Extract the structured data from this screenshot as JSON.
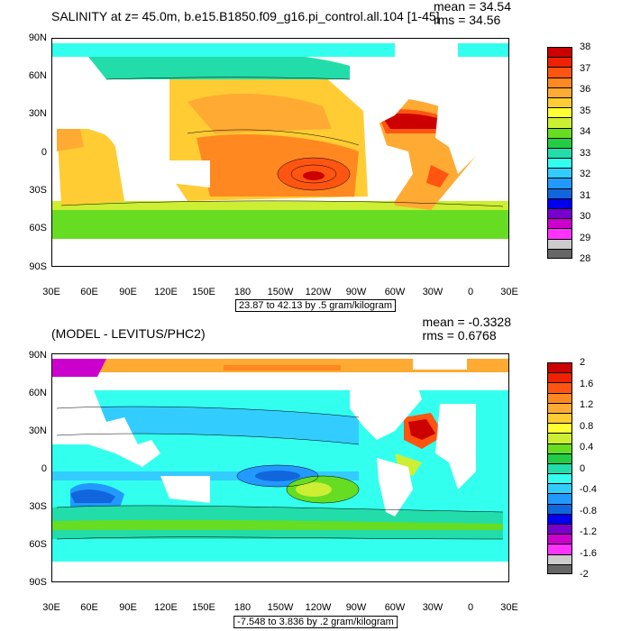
{
  "panels": [
    {
      "title": "SALINITY at z=  45.0m, b.e15.B1850.f09_g16.pi_control.all.104 [1-45]",
      "stats": {
        "mean": "mean = 34.54",
        "rms": "rms = 34.56"
      },
      "range_text": "23.87 to 42.13 by .5 gram/kilogram",
      "lat_ticks": [
        "90N",
        "60N",
        "30N",
        "0",
        "30S",
        "60S",
        "90S"
      ],
      "lon_ticks": [
        "30E",
        "60E",
        "90E",
        "120E",
        "150E",
        "180",
        "150W",
        "120W",
        "90W",
        "60W",
        "30W",
        "0",
        "30E"
      ],
      "colorbar": {
        "labels": [
          "38",
          "37",
          "36",
          "35",
          "34",
          "33",
          "32",
          "31",
          "30",
          "29",
          "28"
        ],
        "colors": [
          "#cc0000",
          "#ee2200",
          "#ff5511",
          "#ff8820",
          "#ffaa33",
          "#ffcc33",
          "#ffff33",
          "#ccee33",
          "#66dd22",
          "#22cc44",
          "#22ddaa",
          "#33ffee",
          "#33ccff",
          "#2299ff",
          "#1166dd",
          "#0000ee",
          "#7700cc",
          "#cc00cc",
          "#ff33ff",
          "#cccccc",
          "#666666"
        ]
      }
    },
    {
      "title": "(MODEL - LEVITUS/PHC2)",
      "stats": {
        "mean": "mean = -0.3328",
        "rms": "rms = 0.6768"
      },
      "range_text": "-7.548 to 3.836 by .2 gram/kilogram",
      "lat_ticks": [
        "90N",
        "60N",
        "30N",
        "0",
        "30S",
        "60S",
        "90S"
      ],
      "lon_ticks": [
        "30E",
        "60E",
        "90E",
        "120E",
        "150E",
        "180",
        "150W",
        "120W",
        "90W",
        "60W",
        "30W",
        "0",
        "30E"
      ],
      "colorbar": {
        "labels": [
          "2",
          "1.6",
          "1.2",
          "0.8",
          "0.4",
          "0",
          "-0.4",
          "-0.8",
          "-1.2",
          "-1.6",
          "-2"
        ],
        "colors": [
          "#cc0000",
          "#ee2200",
          "#ff5511",
          "#ff8820",
          "#ffaa33",
          "#ffcc33",
          "#ffff33",
          "#ccee33",
          "#66dd22",
          "#22cc44",
          "#22ddaa",
          "#33ffee",
          "#33ccff",
          "#2299ff",
          "#1166dd",
          "#0000ee",
          "#7700cc",
          "#cc00cc",
          "#ff33ff",
          "#cccccc",
          "#666666"
        ]
      }
    }
  ]
}
